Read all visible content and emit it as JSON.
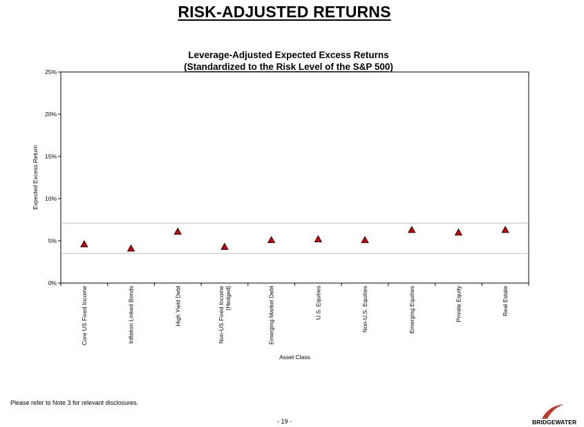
{
  "page": {
    "title": "RISK-ADJUSTED RETURNS",
    "footnote": "Please refer to Note 3 for relevant disclosures.",
    "page_number": "- 19 -",
    "logo_text": "BRIDGEWATER"
  },
  "colors": {
    "marker_fill": "#cc0000",
    "marker_stroke": "#000000",
    "band_line": "#bfbfbf"
  },
  "chart_data": {
    "type": "scatter",
    "title": "Leverage-Adjusted Expected Excess Returns",
    "subtitle": "(Standardized to the Risk Level of the S&P 500)",
    "xlabel": "Asset Class",
    "ylabel": "Expected Excess Return",
    "ylim": [
      0,
      25
    ],
    "yticks": [
      0,
      5,
      10,
      15,
      20,
      25
    ],
    "ytick_labels": [
      "0%",
      "5%",
      "10%",
      "15%",
      "20%",
      "25%"
    ],
    "reference_lines": [
      3.5,
      7.1
    ],
    "grid": false,
    "legend": "none",
    "categories": [
      [
        "Core US Fixed Income"
      ],
      [
        "Inflation Linked Bonds"
      ],
      [
        "High Yield Debt"
      ],
      [
        "Non-US Fixed Income",
        "(Hedged)"
      ],
      [
        "Emerging Market Debt"
      ],
      [
        "U.S. Equities"
      ],
      [
        "Non-U.S. Equities"
      ],
      [
        "Emerging Equities"
      ],
      [
        "Private Equity"
      ],
      [
        "Real Estate"
      ]
    ],
    "values": [
      4.6,
      4.1,
      6.1,
      4.3,
      5.1,
      5.2,
      5.1,
      6.3,
      6.0,
      6.3
    ]
  }
}
